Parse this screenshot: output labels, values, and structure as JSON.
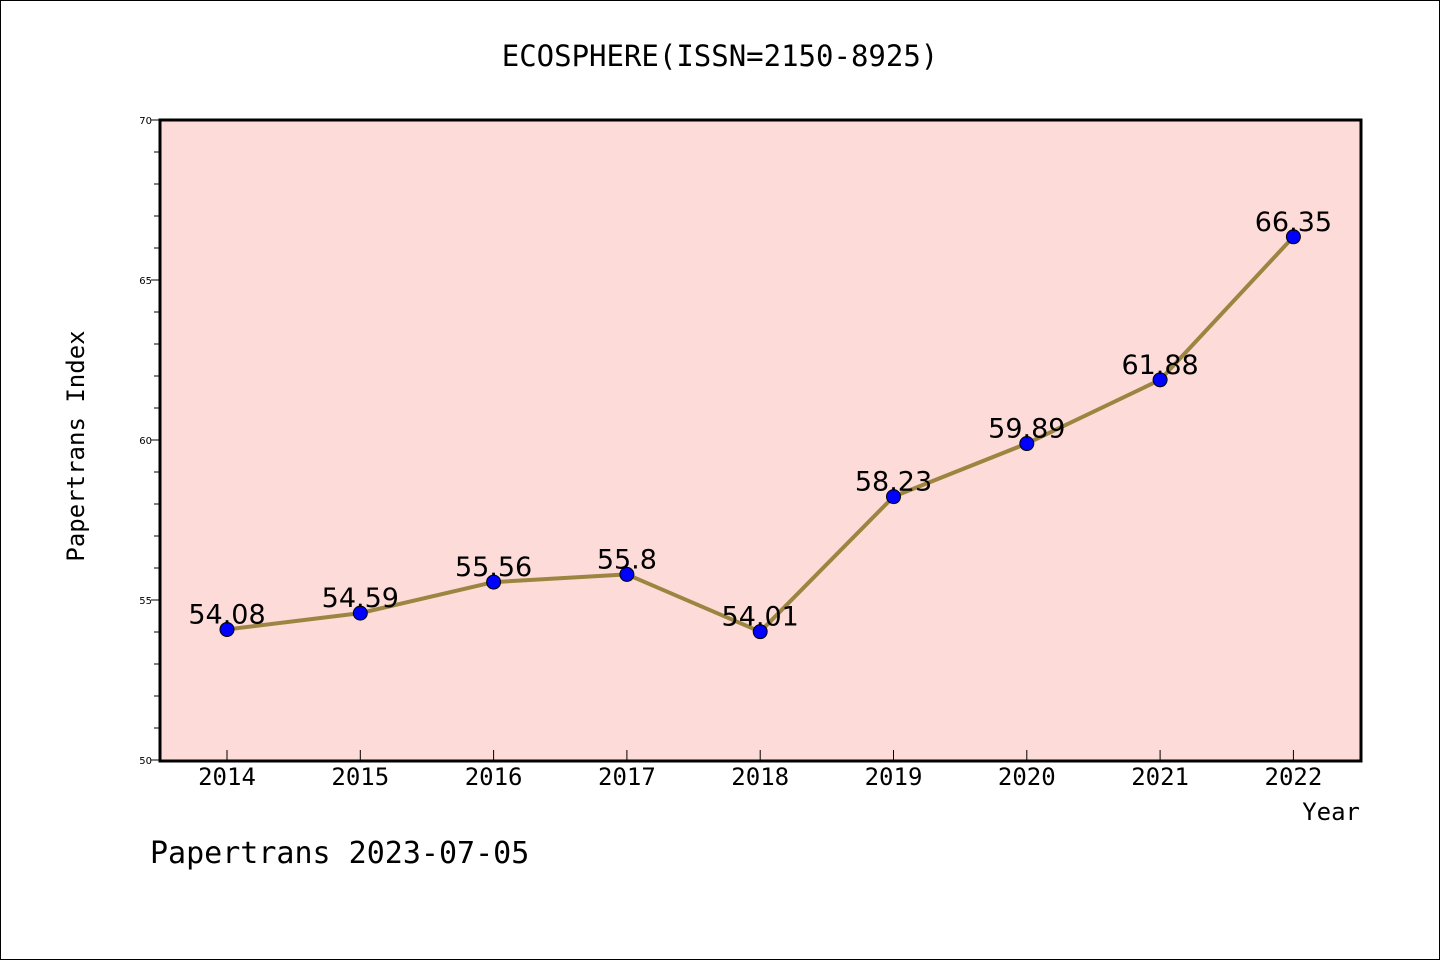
{
  "chart_data": {
    "type": "line",
    "title": "ECOSPHERE(ISSN=2150-8925)",
    "xlabel": "Year",
    "ylabel": "Papertrans Index",
    "categories": [
      "2014",
      "2015",
      "2016",
      "2017",
      "2018",
      "2019",
      "2020",
      "2021",
      "2022"
    ],
    "series": [
      {
        "values": [
          54.08,
          54.59,
          55.56,
          55.8,
          54.01,
          58.23,
          59.89,
          61.88,
          66.35
        ]
      }
    ],
    "data_labels": [
      "54.08",
      "54.59",
      "55.56",
      "55.8",
      "54.01",
      "58.23",
      "59.89",
      "61.88",
      "66.35"
    ],
    "ylim": [
      50,
      70
    ],
    "y_ticks": [
      50,
      55,
      60,
      65,
      70
    ],
    "y_tick_labels": [
      "50",
      "55",
      "60",
      "65",
      "70"
    ],
    "grid": false,
    "colors": {
      "plot_background": "#fddbd8",
      "line": "#9b8540",
      "marker": "#0000ff"
    }
  },
  "footer": {
    "text": "Papertrans 2023-07-05"
  }
}
